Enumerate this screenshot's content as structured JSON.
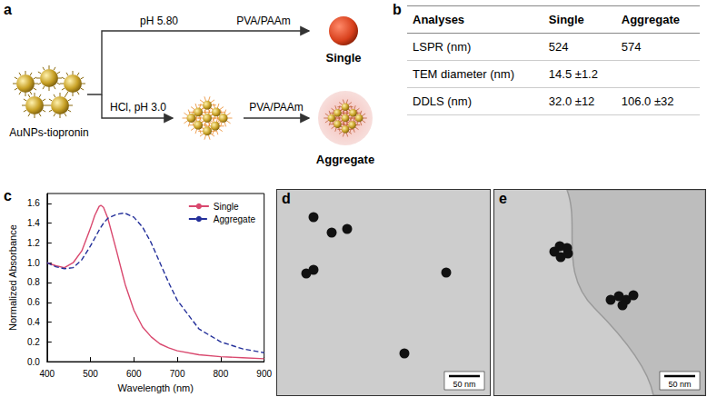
{
  "chart_data": {
    "type": "line",
    "x_label": "Wavelength (nm)",
    "y_label": "Normalized Absorbance",
    "x": [
      400,
      420,
      440,
      460,
      480,
      500,
      510,
      520,
      524,
      530,
      540,
      560,
      574,
      580,
      600,
      620,
      640,
      660,
      680,
      700,
      750,
      800,
      850,
      900
    ],
    "series": [
      {
        "name": "Single",
        "color": "#d9486e",
        "line_style": "solid",
        "values": [
          1.0,
          0.97,
          0.95,
          1.0,
          1.12,
          1.35,
          1.48,
          1.57,
          1.58,
          1.56,
          1.45,
          1.12,
          0.88,
          0.78,
          0.52,
          0.35,
          0.25,
          0.18,
          0.14,
          0.11,
          0.07,
          0.05,
          0.04,
          0.03
        ]
      },
      {
        "name": "Aggregate",
        "color": "#24309a",
        "line_style": "dashed",
        "values": [
          1.0,
          0.96,
          0.94,
          0.95,
          1.03,
          1.17,
          1.25,
          1.33,
          1.36,
          1.4,
          1.45,
          1.49,
          1.5,
          1.5,
          1.46,
          1.36,
          1.2,
          1.0,
          0.8,
          0.62,
          0.33,
          0.2,
          0.13,
          0.09
        ]
      }
    ],
    "xlim": [
      400,
      900
    ],
    "xticks": [
      400,
      500,
      600,
      700,
      800,
      900
    ],
    "ylim": [
      0,
      1.7
    ],
    "yticks": [
      {
        "value": 0,
        "label": "0.0"
      },
      {
        "value": 0.2,
        "label": "0.2"
      },
      {
        "value": 0.4,
        "label": "0.4"
      },
      {
        "value": 0.6,
        "label": "0.6"
      },
      {
        "value": 0.8,
        "label": "0.8"
      },
      {
        "value": 1,
        "label": "1.0"
      },
      {
        "value": 1.2,
        "label": "1.2"
      },
      {
        "value": 1.4,
        "label": "1.4"
      },
      {
        "value": 1.6,
        "label": "1.6"
      }
    ],
    "grid": false,
    "legend": "upper right"
  },
  "panels": {
    "a": {
      "label": "a",
      "start": "AuNPs-tiopronin",
      "upper": {
        "condition": "pH 5.80",
        "step": "PVA/PAAm",
        "product": "Single"
      },
      "lower": {
        "condition": "HCl, pH 3.0",
        "step": "PVA/PAAm",
        "product": "Aggregate"
      }
    },
    "b": {
      "label": "b",
      "header": [
        "Analyses",
        "Single",
        "Aggregate"
      ],
      "rows": [
        [
          "LSPR (nm)",
          "524",
          "574"
        ],
        [
          "TEM diameter (nm)",
          "14.5 ±1.2",
          null
        ],
        [
          "DDLS (nm)",
          "32.0 ±12",
          "106.0 ±32"
        ]
      ]
    },
    "c": {
      "label": "c"
    },
    "d": {
      "label": "d",
      "scale_bar": "50 nm"
    },
    "e": {
      "label": "e",
      "scale_bar": "50 nm"
    }
  }
}
